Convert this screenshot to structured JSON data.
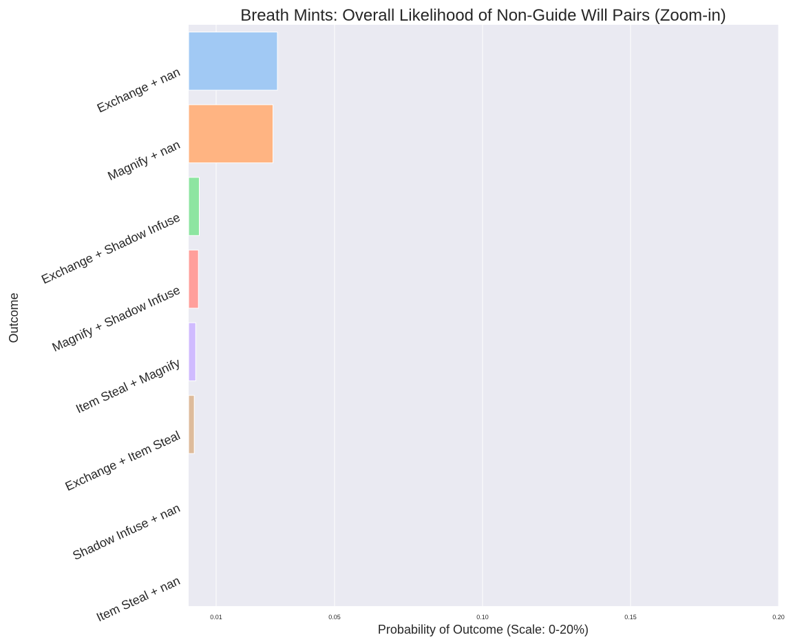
{
  "chart_data": {
    "type": "bar",
    "orientation": "horizontal",
    "title": "Breath Mints: Overall Likelihood of Non-Guide Will Pairs (Zoom-in)",
    "xlabel": "Probability of Outcome (Scale: 0-20%)",
    "ylabel": "Outcome",
    "xlim": [
      0,
      0.2
    ],
    "xticks": [
      0.01,
      0.05,
      0.1,
      0.15,
      0.2
    ],
    "xtick_labels": [
      "0.01",
      "0.05",
      "0.10",
      "0.15",
      "0.20"
    ],
    "grid": true,
    "categories": [
      "Exchange + nan",
      "Magnify + nan",
      "Exchange + Shadow Infuse",
      "Magnify + Shadow Infuse",
      "Item Steal + Magnify",
      "Exchange + Item Steal",
      "Shadow Infuse + nan",
      "Item Steal + nan"
    ],
    "values": [
      0.0307,
      0.0292,
      0.0043,
      0.004,
      0.0031,
      0.0026,
      0.0,
      0.0
    ],
    "colors": [
      "#a1c9f4",
      "#ffb482",
      "#8de5a1",
      "#ff9f9b",
      "#d0bbff",
      "#debb9b",
      "#fab0e4",
      "#cfcfcf"
    ]
  }
}
